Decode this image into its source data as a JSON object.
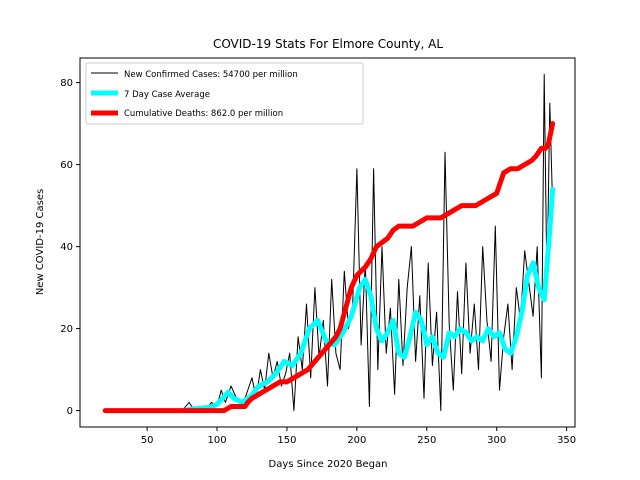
{
  "chart_data": {
    "type": "line",
    "title": "COVID-19 Stats For Elmore County, AL",
    "xlabel": "Days Since 2020 Began",
    "ylabel": "New COVID-19 Cases",
    "xlim": [
      2,
      356
    ],
    "ylim": [
      -4,
      86
    ],
    "xticks": [
      50,
      100,
      150,
      200,
      250,
      300,
      350
    ],
    "yticks": [
      0,
      20,
      40,
      60,
      80
    ],
    "grid": false,
    "legend_position": "top-left",
    "series": [
      {
        "name": "New Confirmed Cases: 54700 per million",
        "color": "#000000",
        "x": [
          75,
          80,
          84,
          88,
          92,
          96,
          100,
          103,
          106,
          110,
          114,
          118,
          122,
          125,
          128,
          131,
          134,
          137,
          140,
          143,
          146,
          149,
          152,
          155,
          158,
          161,
          164,
          167,
          170,
          173,
          176,
          179,
          182,
          185,
          188,
          191,
          194,
          197,
          200,
          203,
          206,
          209,
          212,
          215,
          218,
          221,
          224,
          227,
          230,
          233,
          236,
          239,
          242,
          245,
          248,
          251,
          254,
          257,
          260,
          263,
          266,
          269,
          272,
          275,
          278,
          281,
          284,
          287,
          290,
          293,
          296,
          299,
          302,
          305,
          308,
          311,
          314,
          317,
          320,
          323,
          326,
          329,
          332,
          334,
          336,
          338,
          340
        ],
        "values": [
          0,
          2,
          0,
          1,
          0,
          2,
          1,
          5,
          2,
          6,
          3,
          1,
          5,
          8,
          3,
          10,
          5,
          14,
          8,
          12,
          6,
          9,
          14,
          0,
          18,
          10,
          26,
          8,
          30,
          13,
          22,
          6,
          32,
          14,
          10,
          34,
          20,
          26,
          59,
          16,
          36,
          1,
          59,
          10,
          40,
          14,
          25,
          4,
          32,
          11,
          30,
          40,
          12,
          28,
          3,
          36,
          11,
          24,
          0,
          63,
          21,
          5,
          29,
          9,
          36,
          14,
          26,
          10,
          40,
          22,
          12,
          45,
          5,
          18,
          26,
          10,
          30,
          22,
          39,
          31,
          23,
          40,
          8,
          82,
          30,
          75,
          50
        ]
      },
      {
        "name": "7 Day Case Average",
        "color": "#00ffff",
        "x": [
          75,
          85,
          95,
          100,
          104,
          108,
          112,
          118,
          124,
          130,
          136,
          142,
          148,
          154,
          160,
          166,
          172,
          178,
          184,
          190,
          196,
          202,
          206,
          210,
          214,
          218,
          222,
          226,
          230,
          234,
          238,
          242,
          246,
          250,
          254,
          258,
          262,
          266,
          270,
          274,
          278,
          282,
          286,
          290,
          294,
          298,
          302,
          306,
          310,
          314,
          318,
          322,
          326,
          330,
          334,
          338,
          340
        ],
        "values": [
          0,
          0.5,
          0.8,
          1.5,
          3,
          4.5,
          3,
          2,
          3.5,
          6,
          7,
          9,
          12,
          11,
          14,
          20,
          22,
          17,
          16,
          19,
          23,
          30,
          32,
          28,
          20,
          17,
          19,
          22,
          14,
          13,
          18,
          24,
          22,
          16,
          18,
          14,
          13,
          19,
          18,
          20,
          19,
          17,
          18,
          17,
          20,
          18,
          19,
          15,
          14,
          18,
          24,
          33,
          36,
          30,
          27,
          44,
          54
        ]
      },
      {
        "name": "Cumulative Deaths: 862.0 per million",
        "color": "#ff0000",
        "x": [
          20,
          60,
          90,
          105,
          110,
          115,
          120,
          122,
          125,
          130,
          135,
          140,
          145,
          150,
          155,
          160,
          165,
          170,
          175,
          180,
          185,
          188,
          192,
          196,
          200,
          203,
          206,
          210,
          214,
          218,
          222,
          226,
          230,
          234,
          240,
          245,
          250,
          255,
          260,
          265,
          270,
          275,
          280,
          285,
          290,
          295,
          300,
          303,
          305,
          310,
          315,
          320,
          325,
          328,
          332,
          335,
          337,
          340
        ],
        "values": [
          0,
          0,
          0,
          0,
          1,
          1,
          1,
          2,
          3,
          4,
          5,
          6,
          7,
          7,
          8,
          9,
          10,
          12,
          14,
          16,
          18,
          20,
          25,
          30,
          33,
          34,
          35,
          37,
          40,
          41,
          42,
          44,
          45,
          45,
          45,
          46,
          47,
          47,
          47,
          48,
          49,
          50,
          50,
          50,
          51,
          52,
          53,
          56,
          58,
          59,
          59,
          60,
          61,
          62,
          64,
          64,
          65,
          70
        ]
      }
    ]
  },
  "colors": {
    "frame": "#000000",
    "legend_border": "#cccccc",
    "background": "#ffffff"
  }
}
